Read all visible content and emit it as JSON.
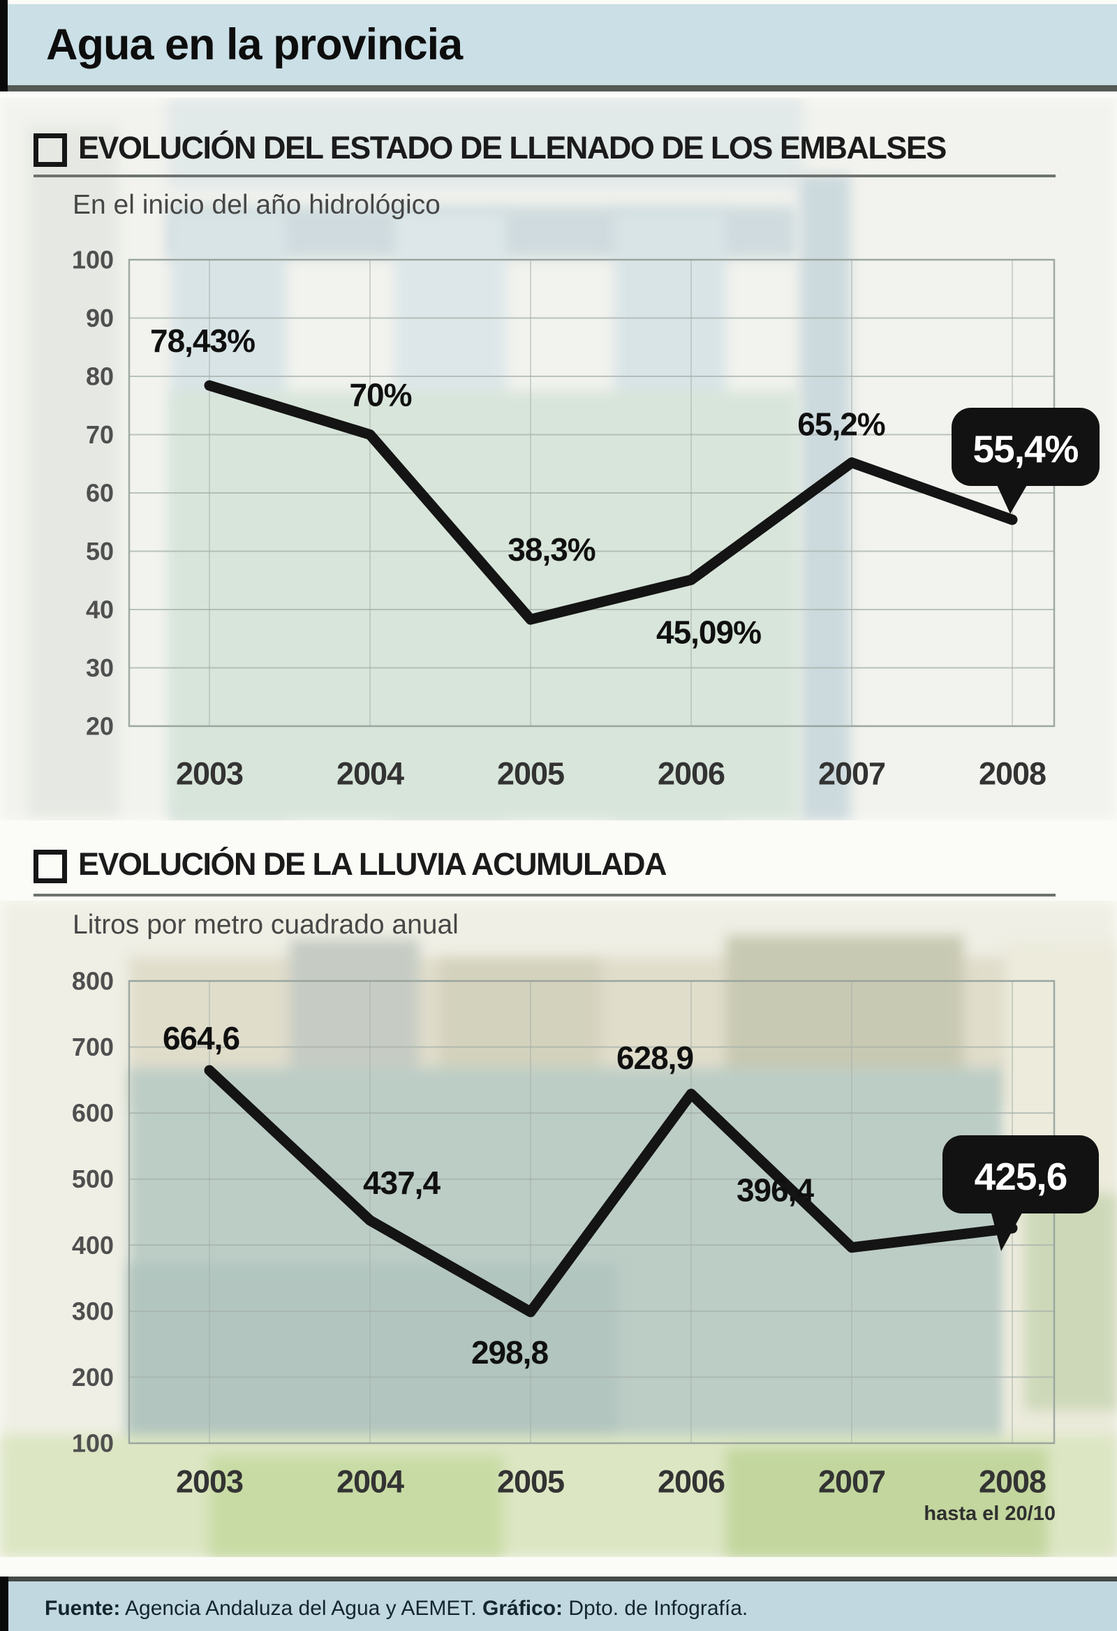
{
  "title_bar": {
    "title": "Agua en la provincia"
  },
  "colors": {
    "line": "#141414",
    "callout_bg": "#121212",
    "callout_text": "#ffffff",
    "grid": "#a7b2ac",
    "plot_border": "#97a29c",
    "axis_text": "#4f4f4f",
    "year_text": "#333333",
    "label_text": "#101010",
    "title_bg": "#cadfe6",
    "footer_bg": "#c2d8e0",
    "accent_bar": "#0a0a0a"
  },
  "chart_data": [
    {
      "type": "line",
      "section_title": "EVOLUCIÓN DEL ESTADO DE LLENADO DE LOS EMBALSES",
      "subtitle": "En el inicio del año hidrológico",
      "categories": [
        "2003",
        "2004",
        "2005",
        "2006",
        "2007",
        "2008"
      ],
      "values": [
        78.43,
        70,
        38.3,
        45.09,
        65.2,
        55.4
      ],
      "point_labels": [
        "78,43%",
        "70%",
        "38,3%",
        "45,09%",
        "65,2%",
        "55,4%"
      ],
      "highlight_index": 5,
      "highlight_label": "55,4%",
      "ylim": [
        20,
        100
      ],
      "yticks": [
        100,
        90,
        80,
        70,
        60,
        50,
        40,
        30,
        20
      ],
      "grid": true,
      "legend": "none"
    },
    {
      "type": "line",
      "section_title": "EVOLUCIÓN DE LA LLUVIA ACUMULADA",
      "subtitle": "Litros por metro cuadrado anual",
      "categories": [
        "2003",
        "2004",
        "2005",
        "2006",
        "2007",
        "2008"
      ],
      "values": [
        664.6,
        437.4,
        298.8,
        628.9,
        396.4,
        425.6
      ],
      "point_labels": [
        "664,6",
        "437,4",
        "298,8",
        "628,9",
        "396,4",
        "425,6"
      ],
      "highlight_index": 5,
      "highlight_label": "425,6",
      "note": "hasta el 20/10",
      "ylim": [
        100,
        800
      ],
      "yticks": [
        800,
        700,
        600,
        500,
        400,
        300,
        200,
        100
      ],
      "grid": true,
      "legend": "none"
    }
  ],
  "footer": {
    "source_label": "Fuente:",
    "source_text": " Agencia Andaluza del Agua y AEMET. ",
    "credit_label": "Gráfico:",
    "credit_text": " Dpto. de Infografía."
  }
}
